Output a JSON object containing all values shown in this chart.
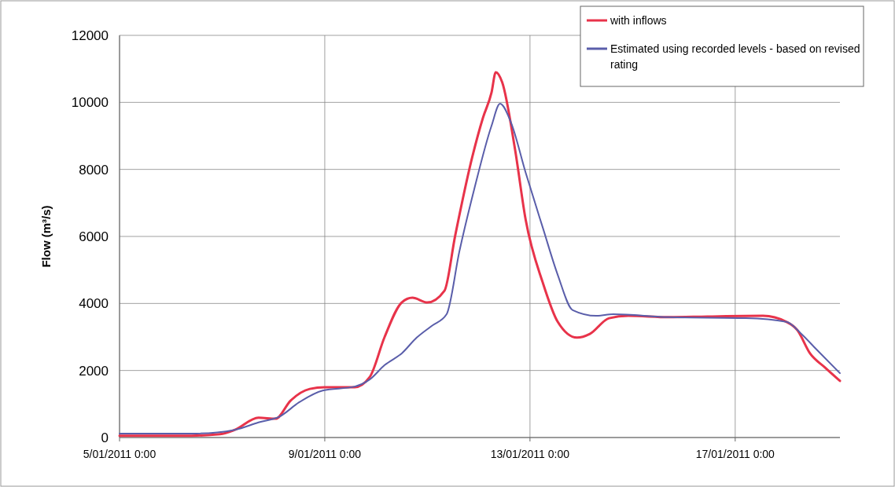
{
  "chart_data": {
    "type": "line",
    "ylabel": "Flow (m³/s)",
    "xlim": [
      "2011-01-05T00:00",
      "2011-01-19T01:00"
    ],
    "ylim": [
      0,
      12000
    ],
    "yticks": [
      0,
      2000,
      4000,
      6000,
      8000,
      10000,
      12000
    ],
    "xticks": [
      {
        "value": "2011-01-05T00:00",
        "label": "5/01/2011 0:00"
      },
      {
        "value": "2011-01-09T00:00",
        "label": "9/01/2011 0:00"
      },
      {
        "value": "2011-01-13T00:00",
        "label": "13/01/2011 0:00"
      },
      {
        "value": "2011-01-17T00:00",
        "label": "17/01/2011 0:00"
      }
    ],
    "grid": true,
    "legend": "top right",
    "marker": "none",
    "line_style": "solid",
    "series": [
      {
        "name": "with inflows",
        "color": "#e8334a",
        "x": [
          "2011-01-05T00:00",
          "2011-01-06T05:00",
          "2011-01-06T23:00",
          "2011-01-07T06:00",
          "2011-01-07T17:00",
          "2011-01-08T01:00",
          "2011-01-08T08:00",
          "2011-01-08T17:00",
          "2011-01-09T00:00",
          "2011-01-09T14:00",
          "2011-01-09T21:00",
          "2011-01-10T04:00",
          "2011-01-10T12:00",
          "2011-01-10T17:00",
          "2011-01-11T00:00",
          "2011-01-11T08:00",
          "2011-01-11T13:00",
          "2011-01-11T21:00",
          "2011-01-12T02:00",
          "2011-01-12T06:00",
          "2011-01-12T08:00",
          "2011-01-12T11:00",
          "2011-01-12T17:00",
          "2011-01-12T22:00",
          "2011-01-13T06:00",
          "2011-01-13T13:00",
          "2011-01-13T22:00",
          "2011-01-14T04:00",
          "2011-01-14T13:00",
          "2011-01-14T22:00",
          "2011-01-15T17:00",
          "2011-01-16T11:00",
          "2011-01-17T13:00",
          "2011-01-18T00:00",
          "2011-01-18T05:00",
          "2011-01-18T11:00",
          "2011-01-18T18:00",
          "2011-01-19T01:00"
        ],
        "values": [
          50,
          50,
          100,
          230,
          590,
          560,
          1100,
          1450,
          1500,
          1500,
          1800,
          3000,
          4030,
          4170,
          4030,
          4380,
          6020,
          8370,
          9540,
          10290,
          10900,
          10600,
          8600,
          6490,
          4620,
          3450,
          2980,
          3090,
          3560,
          3630,
          3590,
          3610,
          3630,
          3450,
          3210,
          2510,
          2090,
          1690
        ]
      },
      {
        "name": "Estimated using recorded levels - based on revised rating",
        "color": "#5a5eaa",
        "x": [
          "2011-01-05T00:00",
          "2011-01-06T12:00",
          "2011-01-07T06:00",
          "2011-01-07T17:00",
          "2011-01-08T03:00",
          "2011-01-08T12:00",
          "2011-01-08T23:00",
          "2011-01-09T14:00",
          "2011-01-09T21:00",
          "2011-01-10T04:00",
          "2011-01-10T12:00",
          "2011-01-10T19:00",
          "2011-01-11T02:00",
          "2011-01-11T09:00",
          "2011-01-11T15:00",
          "2011-01-11T22:00",
          "2011-01-12T06:00",
          "2011-01-12T10:00",
          "2011-01-12T15:00",
          "2011-01-12T22:00",
          "2011-01-13T06:00",
          "2011-01-13T13:00",
          "2011-01-13T20:00",
          "2011-01-14T07:00",
          "2011-01-14T15:00",
          "2011-01-15T17:00",
          "2011-01-17T05:00",
          "2011-01-18T00:00",
          "2011-01-18T07:00",
          "2011-01-18T14:00",
          "2011-01-19T01:00"
        ],
        "values": [
          120,
          120,
          230,
          450,
          630,
          1050,
          1400,
          1520,
          1730,
          2160,
          2510,
          2980,
          3330,
          3680,
          5560,
          7430,
          9300,
          9960,
          9420,
          7900,
          6260,
          4850,
          3800,
          3630,
          3680,
          3590,
          3560,
          3450,
          3090,
          2630,
          1920
        ]
      }
    ]
  }
}
